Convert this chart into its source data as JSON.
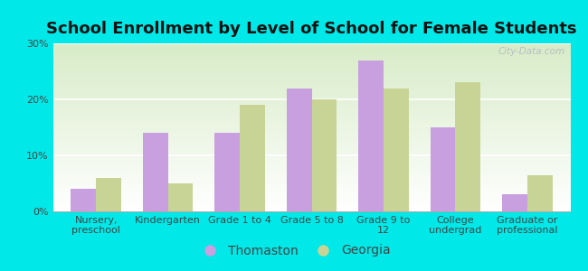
{
  "title": "School Enrollment by Level of School for Female Students",
  "categories": [
    "Nursery,\npreschool",
    "Kindergarten",
    "Grade 1 to 4",
    "Grade 5 to 8",
    "Grade 9 to\n12",
    "College\nundergrad",
    "Graduate or\nprofessional"
  ],
  "thomaston": [
    4.0,
    14.0,
    14.0,
    22.0,
    27.0,
    15.0,
    3.0
  ],
  "georgia": [
    6.0,
    5.0,
    19.0,
    20.0,
    22.0,
    23.0,
    6.5
  ],
  "thomaston_color": "#c8a0e0",
  "georgia_color": "#c8d496",
  "background_outer": "#00e8e8",
  "ylim": [
    0,
    30
  ],
  "yticks": [
    0,
    10,
    20,
    30
  ],
  "title_fontsize": 13,
  "tick_fontsize": 8,
  "legend_fontsize": 10,
  "watermark": "City-Data.com"
}
